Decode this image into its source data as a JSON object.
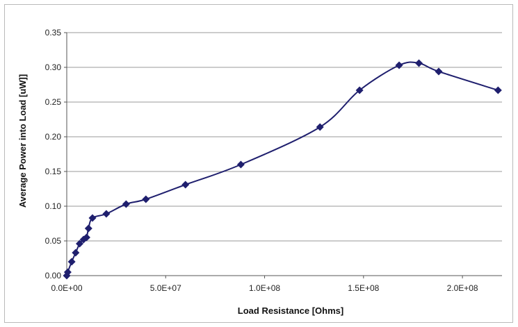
{
  "chart_data": {
    "type": "scatter",
    "title": "",
    "xlabel": "Load Resistance [Ohms]",
    "ylabel": "Average Power into Load [uW]]",
    "xlim": [
      0,
      220000000
    ],
    "ylim": [
      0,
      0.35
    ],
    "x_ticks": [
      {
        "value": 0,
        "label": "0.0E+00"
      },
      {
        "value": 50000000,
        "label": "5.0E+07"
      },
      {
        "value": 100000000,
        "label": "1.0E+08"
      },
      {
        "value": 150000000,
        "label": "1.5E+08"
      },
      {
        "value": 200000000,
        "label": "2.0E+08"
      }
    ],
    "y_ticks": [
      {
        "value": 0,
        "label": "0.00"
      },
      {
        "value": 0.05,
        "label": "0.05"
      },
      {
        "value": 0.1,
        "label": "0.10"
      },
      {
        "value": 0.15,
        "label": "0.15"
      },
      {
        "value": 0.2,
        "label": "0.20"
      },
      {
        "value": 0.25,
        "label": "0.25"
      },
      {
        "value": 0.3,
        "label": "0.30"
      },
      {
        "value": 0.35,
        "label": "0.35"
      }
    ],
    "grid": {
      "horizontal": true,
      "vertical": false
    },
    "legend": "none",
    "series": [
      {
        "color": "#1f1f6e",
        "marker": "diamond",
        "line": "smoothed",
        "points": [
          {
            "x": 0,
            "y": 0.0
          },
          {
            "x": 500000,
            "y": 0.005
          },
          {
            "x": 2500000,
            "y": 0.02
          },
          {
            "x": 4500000,
            "y": 0.033
          },
          {
            "x": 6500000,
            "y": 0.046
          },
          {
            "x": 8500000,
            "y": 0.052
          },
          {
            "x": 10000000,
            "y": 0.055
          },
          {
            "x": 11000000,
            "y": 0.068
          },
          {
            "x": 13000000,
            "y": 0.083
          },
          {
            "x": 20000000,
            "y": 0.089
          },
          {
            "x": 30000000,
            "y": 0.103
          },
          {
            "x": 40000000,
            "y": 0.11
          },
          {
            "x": 60000000,
            "y": 0.131
          },
          {
            "x": 88000000,
            "y": 0.16
          },
          {
            "x": 128000000,
            "y": 0.214
          },
          {
            "x": 148000000,
            "y": 0.267
          },
          {
            "x": 168000000,
            "y": 0.303
          },
          {
            "x": 178000000,
            "y": 0.306
          },
          {
            "x": 188000000,
            "y": 0.294
          },
          {
            "x": 218000000,
            "y": 0.267
          }
        ]
      }
    ]
  }
}
